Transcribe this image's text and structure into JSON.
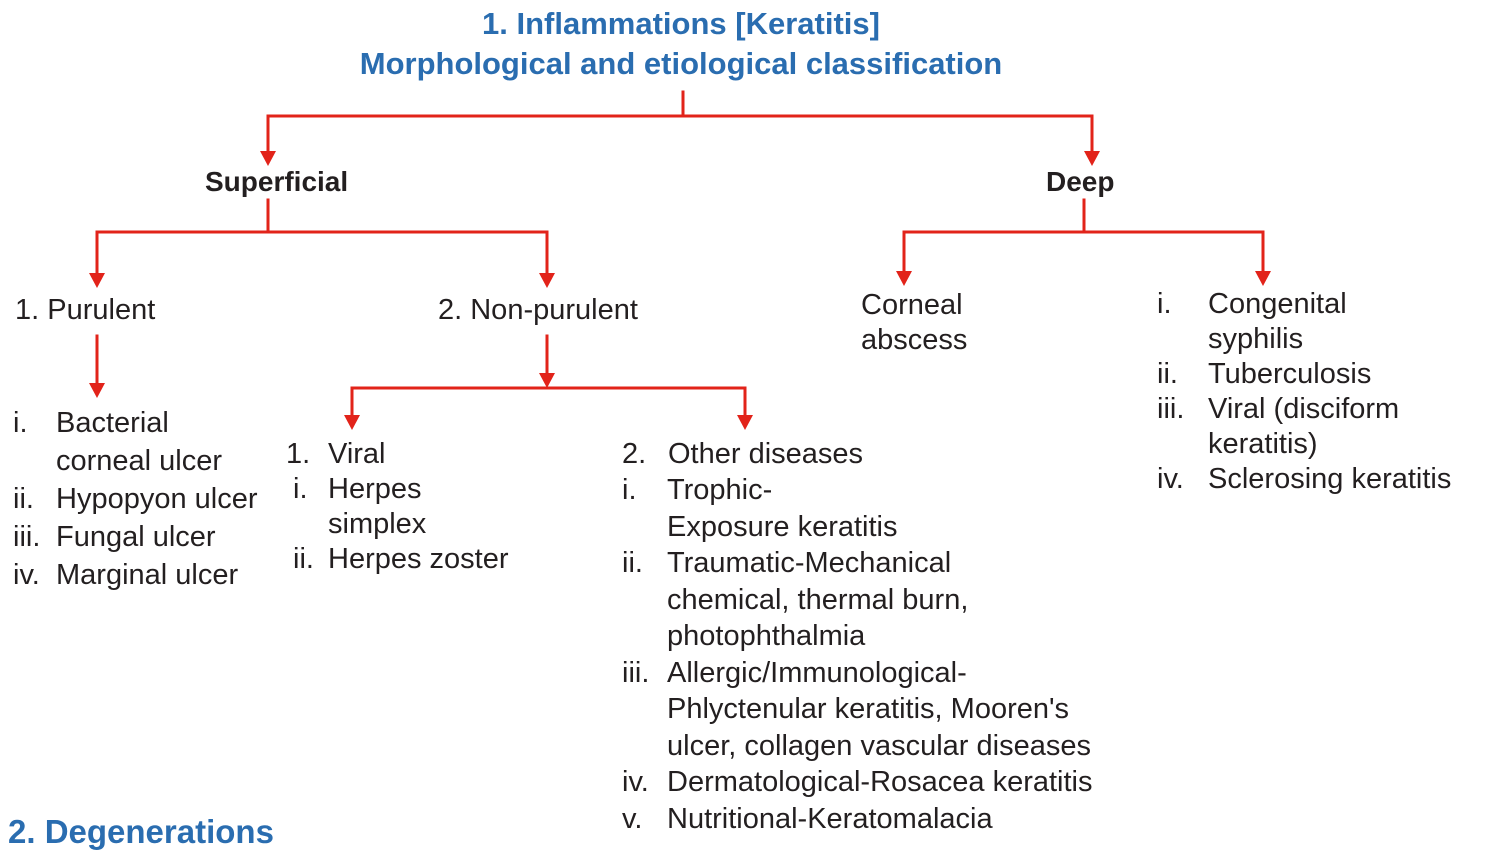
{
  "title": {
    "line1": "1. Inflammations [Keratitis]",
    "line2": "Morphological and etiological classification"
  },
  "superficial": {
    "label": "Superficial",
    "purulent": {
      "label": "1. Purulent",
      "items": [
        {
          "num": "i.",
          "lines": [
            "Bacterial",
            "corneal ulcer"
          ]
        },
        {
          "num": "ii.",
          "lines": [
            "Hypopyon ulcer"
          ]
        },
        {
          "num": "iii.",
          "lines": [
            "Fungal ulcer"
          ]
        },
        {
          "num": "iv.",
          "lines": [
            "Marginal ulcer"
          ]
        }
      ]
    },
    "non_purulent": {
      "label": "2. Non-purulent",
      "viral": {
        "num": "1.",
        "label": "Viral",
        "items": [
          {
            "num": "i.",
            "lines": [
              "Herpes",
              "simplex"
            ]
          },
          {
            "num": "ii.",
            "lines": [
              "Herpes zoster"
            ]
          }
        ]
      },
      "other": {
        "num": "2.",
        "label": "Other diseases",
        "items": [
          {
            "num": "i.",
            "lines": [
              "Trophic-",
              "Exposure keratitis"
            ]
          },
          {
            "num": "ii.",
            "lines": [
              "Traumatic-Mechanical",
              "chemical, thermal burn,",
              "photophthalmia"
            ]
          },
          {
            "num": "iii.",
            "lines": [
              "Allergic/Immunological-",
              "Phlyctenular keratitis, Mooren's",
              "ulcer, collagen vascular diseases"
            ]
          },
          {
            "num": "iv.",
            "lines": [
              "Dermatological-Rosacea keratitis"
            ]
          },
          {
            "num": "v.",
            "lines": [
              "Nutritional-Keratomalacia"
            ]
          }
        ]
      }
    }
  },
  "deep": {
    "label": "Deep",
    "abscess": {
      "lines": [
        "Corneal",
        "abscess"
      ]
    },
    "items": [
      {
        "num": "i.",
        "lines": [
          "Congenital",
          "syphilis"
        ]
      },
      {
        "num": "ii.",
        "lines": [
          "Tuberculosis"
        ]
      },
      {
        "num": "iii.",
        "lines": [
          "Viral (disciform",
          "keratitis)"
        ]
      },
      {
        "num": "iv.",
        "lines": [
          "Sclerosing keratitis"
        ]
      }
    ]
  },
  "section2": {
    "label": "2.  Degenerations"
  },
  "colors": {
    "title": "#2a6db0",
    "connector": "#e2231a",
    "text": "#231f20"
  }
}
